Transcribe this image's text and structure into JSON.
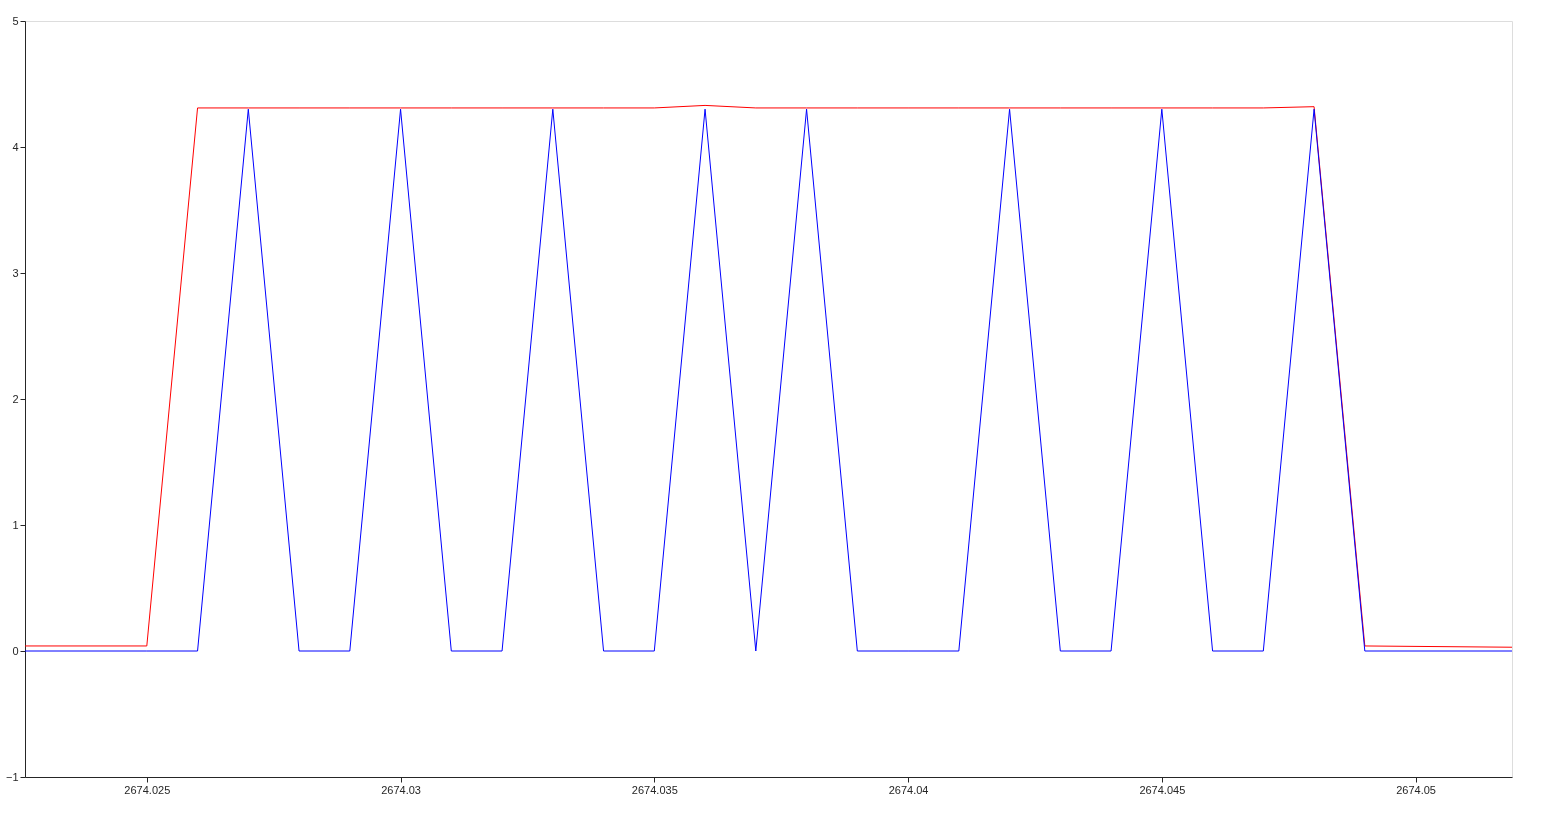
{
  "chart_data": {
    "type": "line",
    "x": [
      2674.0226,
      2674.025,
      2674.026,
      2674.027,
      2674.028,
      2674.029,
      2674.03,
      2674.031,
      2674.032,
      2674.033,
      2674.034,
      2674.035,
      2674.036,
      2674.037,
      2674.038,
      2674.039,
      2674.04,
      2674.041,
      2674.042,
      2674.043,
      2674.044,
      2674.045,
      2674.046,
      2674.047,
      2674.048,
      2674.049,
      2674.0519
    ],
    "series": [
      {
        "color": "#ff0000",
        "values": [
          0.04,
          0.04,
          4.31,
          4.31,
          4.31,
          4.31,
          4.31,
          4.31,
          4.31,
          4.31,
          4.31,
          4.31,
          4.33,
          4.31,
          4.31,
          4.31,
          4.31,
          4.31,
          4.31,
          4.31,
          4.31,
          4.31,
          4.31,
          4.31,
          4.32,
          0.04,
          0.03
        ]
      },
      {
        "color": "#0000ff",
        "values": [
          0,
          0,
          0,
          4.3,
          0,
          0,
          4.3,
          0,
          0,
          4.3,
          0,
          0,
          4.3,
          0,
          4.3,
          0,
          0,
          0,
          4.3,
          0,
          0,
          4.3,
          0,
          0,
          4.3,
          0,
          0
        ]
      }
    ],
    "xlim": [
      2674.0226,
      2674.0519
    ],
    "xticks": [
      2674.025,
      2674.03,
      2674.035,
      2674.04,
      2674.045,
      2674.05
    ],
    "ylim": [
      -1,
      5
    ],
    "yticks": [
      -1,
      0,
      1,
      2,
      3,
      4,
      5
    ],
    "grid": false,
    "legend": false,
    "marker": "none",
    "line_style": "solid"
  }
}
